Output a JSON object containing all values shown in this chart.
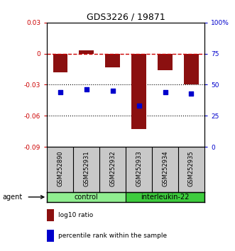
{
  "title": "GDS3226 / 19871",
  "samples": [
    "GSM252890",
    "GSM252931",
    "GSM252932",
    "GSM252933",
    "GSM252934",
    "GSM252935"
  ],
  "log10_ratio": [
    -0.018,
    0.003,
    -0.013,
    -0.073,
    -0.016,
    -0.03
  ],
  "percentile_rank": [
    44,
    46,
    45,
    33,
    44,
    43
  ],
  "groups": [
    {
      "label": "control",
      "color": "#90EE90",
      "samples": [
        0,
        1,
        2
      ]
    },
    {
      "label": "interleukin-22",
      "color": "#3ECC3E",
      "samples": [
        3,
        4,
        5
      ]
    }
  ],
  "ylim_left": [
    -0.09,
    0.03
  ],
  "ylim_right": [
    0,
    100
  ],
  "yticks_left": [
    -0.09,
    -0.06,
    -0.03,
    0,
    0.03
  ],
  "yticks_right": [
    0,
    25,
    50,
    75,
    100
  ],
  "bar_color": "#8B1010",
  "dot_color": "#0000CC",
  "bg_color": "#FFFFFF",
  "hline_zero_color": "#CC0000",
  "dotted_line_color": "#000000",
  "left_tick_color": "#CC0000",
  "right_tick_color": "#0000CC",
  "sample_bg_color": "#C8C8C8",
  "agent_label": "agent",
  "legend_bar_label": "log10 ratio",
  "legend_dot_label": "percentile rank within the sample"
}
